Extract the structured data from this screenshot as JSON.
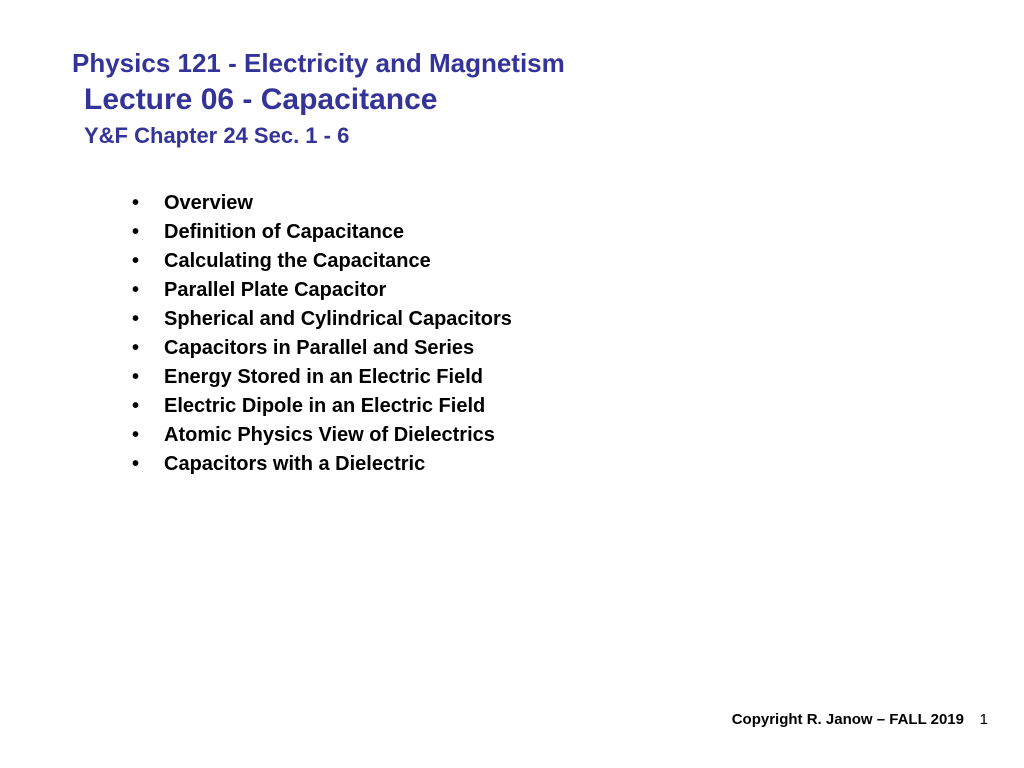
{
  "header": {
    "course_title": "Physics 121 - Electricity and Magnetism",
    "lecture_title": "Lecture 06 - Capacitance",
    "chapter_ref": "Y&F Chapter 24 Sec. 1 - 6"
  },
  "topics": [
    "Overview",
    "Definition of Capacitance",
    "Calculating the Capacitance",
    "Parallel Plate Capacitor",
    "Spherical and Cylindrical Capacitors",
    "Capacitors in Parallel and Series",
    "Energy Stored in an Electric Field",
    "Electric Dipole in an Electric Field",
    "Atomic Physics View of Dielectrics",
    "Capacitors with a Dielectric"
  ],
  "footer": {
    "copyright": "Copyright R. Janow – FALL 2019",
    "page_number": "1"
  },
  "styling": {
    "heading_color": "#333399",
    "text_color": "#000000",
    "background_color": "#ffffff",
    "course_title_fontsize": 26,
    "lecture_title_fontsize": 30,
    "chapter_ref_fontsize": 22,
    "topic_fontsize": 20,
    "footer_fontsize": 15,
    "font_family": "Verdana"
  }
}
